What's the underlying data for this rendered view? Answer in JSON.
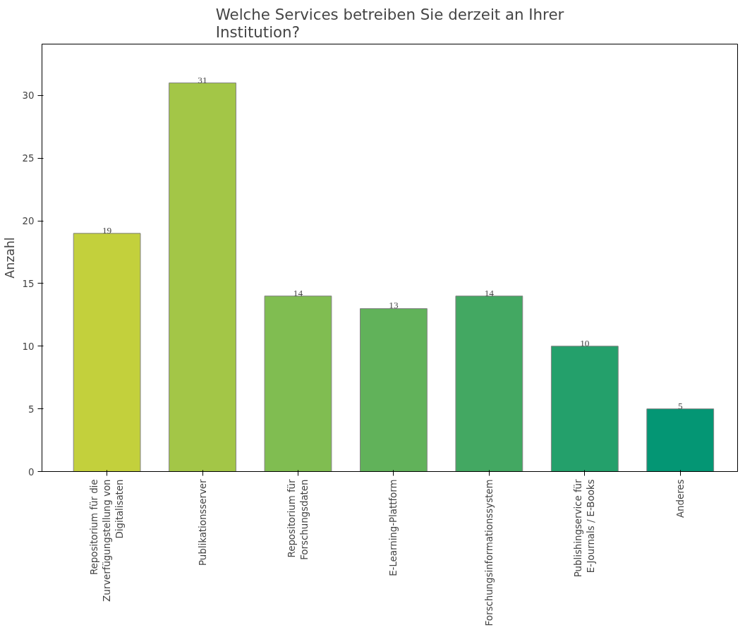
{
  "chart_data": {
    "type": "bar",
    "title": "Welche Services betreiben Sie derzeit an Ihrer\nInstitution?",
    "ylabel": "Anzahl",
    "categories": [
      "Repositorium für die\nZurverfügungstellung von\nDigitalisaten",
      "Publikationsserver",
      "Repositorium für\nForschungsdaten",
      "E-Learning-Plattform",
      "Forschungsinformationssystem",
      "Publishingservice für\nE-Journals / E-Books",
      "Anderes"
    ],
    "values": [
      19,
      31,
      14,
      13,
      14,
      10,
      5
    ],
    "colors": [
      "#c3d03c",
      "#a3c647",
      "#80bd51",
      "#61b25a",
      "#43a862",
      "#24a06b",
      "#049674"
    ],
    "ylim": [
      0,
      34.1
    ],
    "yticks": [
      0,
      5,
      10,
      15,
      20,
      25,
      30
    ],
    "grid": false,
    "data_labels": true
  }
}
